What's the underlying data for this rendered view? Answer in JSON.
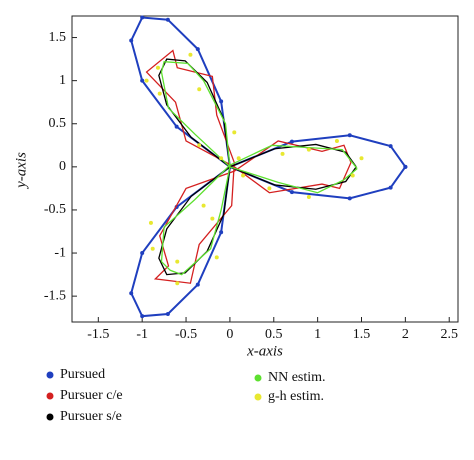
{
  "chart_data": {
    "type": "scatter",
    "x_label": "x-axis",
    "y_label": "y-axis",
    "xlim": [
      -1.8,
      2.6
    ],
    "ylim": [
      -1.8,
      1.75
    ],
    "xticks": [
      -1.5,
      -1,
      -0.5,
      0,
      0.5,
      1,
      1.5,
      2,
      2.5
    ],
    "yticks": [
      -1.5,
      -1,
      -0.5,
      0,
      0.5,
      1,
      1.5
    ],
    "series": [
      {
        "name": "Pursued",
        "color": "#1f3fbf",
        "mode": "lines+markers",
        "x": [
          2,
          1.832,
          1.366,
          0.707,
          0,
          -0.607,
          -1,
          -1.125,
          -1,
          -0.707,
          -0.366,
          -0.1,
          0,
          -0.1,
          -0.366,
          -0.707,
          -1,
          -1.125,
          -1,
          -0.607,
          0,
          0.707,
          1.366,
          1.832,
          2
        ],
        "values": [
          0,
          0.241,
          0.366,
          0.293,
          0,
          -0.466,
          -1,
          -1.466,
          -1.732,
          -1.707,
          -1.366,
          -0.759,
          0,
          0.759,
          1.366,
          1.707,
          1.732,
          1.466,
          1,
          0.466,
          0,
          -0.293,
          -0.366,
          -0.241,
          0
        ]
      },
      {
        "name": "Pursuer c/e",
        "color": "#d42020",
        "mode": "lines",
        "x": [
          1.38,
          1.3,
          1.05,
          0.55,
          0.05,
          -0.5,
          -0.8,
          -0.7,
          -0.85,
          -0.45,
          -0.35,
          0.02,
          0.05,
          -0.15,
          -0.2,
          -0.6,
          -0.65,
          -0.95,
          -0.62,
          -0.5,
          0.05,
          0.45,
          1.05,
          1.25,
          1.38
        ],
        "values": [
          0.05,
          0.25,
          0.18,
          0.3,
          -0.05,
          -0.25,
          -0.8,
          -1.15,
          -1.3,
          -1.35,
          -0.9,
          -0.45,
          0.05,
          0.6,
          1.05,
          1.15,
          1.35,
          1.1,
          0.75,
          0.3,
          0.0,
          -0.3,
          -0.2,
          -0.25,
          0.05
        ]
      },
      {
        "name": "Pursuer s/e",
        "color": "#000000",
        "mode": "lines",
        "x": [
          1.44,
          1.32,
          0.98,
          0.51,
          0,
          -0.44,
          -0.72,
          -0.81,
          -0.72,
          -0.51,
          -0.26,
          -0.07,
          0,
          -0.07,
          -0.26,
          -0.51,
          -0.72,
          -0.81,
          -0.72,
          -0.44,
          0,
          0.51,
          0.98,
          1.32,
          1.44
        ],
        "values": [
          0,
          0.17,
          0.26,
          0.21,
          0,
          -0.34,
          -0.72,
          -1.06,
          -1.25,
          -1.23,
          -0.98,
          -0.55,
          0,
          0.55,
          0.98,
          1.23,
          1.25,
          1.06,
          0.72,
          0.34,
          0,
          -0.21,
          -0.26,
          -0.17,
          0
        ]
      },
      {
        "name": "NN estim.",
        "color": "#5de02f",
        "mode": "lines",
        "x": [
          1.45,
          1.28,
          0.95,
          0.48,
          0.0,
          -0.4,
          -0.75,
          -0.78,
          -0.68,
          -0.55,
          -0.22,
          -0.1,
          0.0,
          -0.05,
          -0.3,
          -0.48,
          -0.75,
          -0.78,
          -0.7,
          -0.4,
          0.0,
          0.55,
          1.0,
          1.3,
          1.45
        ],
        "values": [
          -0.02,
          0.2,
          0.22,
          0.25,
          0.02,
          -0.38,
          -0.7,
          -1.1,
          -1.2,
          -1.25,
          -0.95,
          -0.5,
          0.0,
          0.5,
          1.0,
          1.2,
          1.22,
          1.1,
          0.68,
          0.38,
          0.0,
          -0.18,
          -0.3,
          -0.15,
          -0.02
        ]
      },
      {
        "name": "g-h estim.",
        "color": "#e8e830",
        "mode": "markers",
        "x": [
          1.5,
          1.22,
          0.9,
          0.6,
          0.1,
          -0.3,
          -0.9,
          -0.88,
          -0.6,
          -0.6,
          -0.15,
          -0.2,
          -0.1,
          0.05,
          -0.35,
          -0.45,
          -0.82,
          -0.95,
          -0.8,
          -0.35,
          0.15,
          0.45,
          0.9,
          1.4
        ],
        "values": [
          0.1,
          0.3,
          0.2,
          0.15,
          0.1,
          -0.45,
          -0.65,
          -0.95,
          -1.35,
          -1.1,
          -1.05,
          -0.6,
          0.1,
          0.4,
          0.9,
          1.3,
          1.15,
          1.0,
          0.85,
          0.25,
          -0.1,
          -0.25,
          -0.35,
          -0.1
        ]
      }
    ]
  }
}
